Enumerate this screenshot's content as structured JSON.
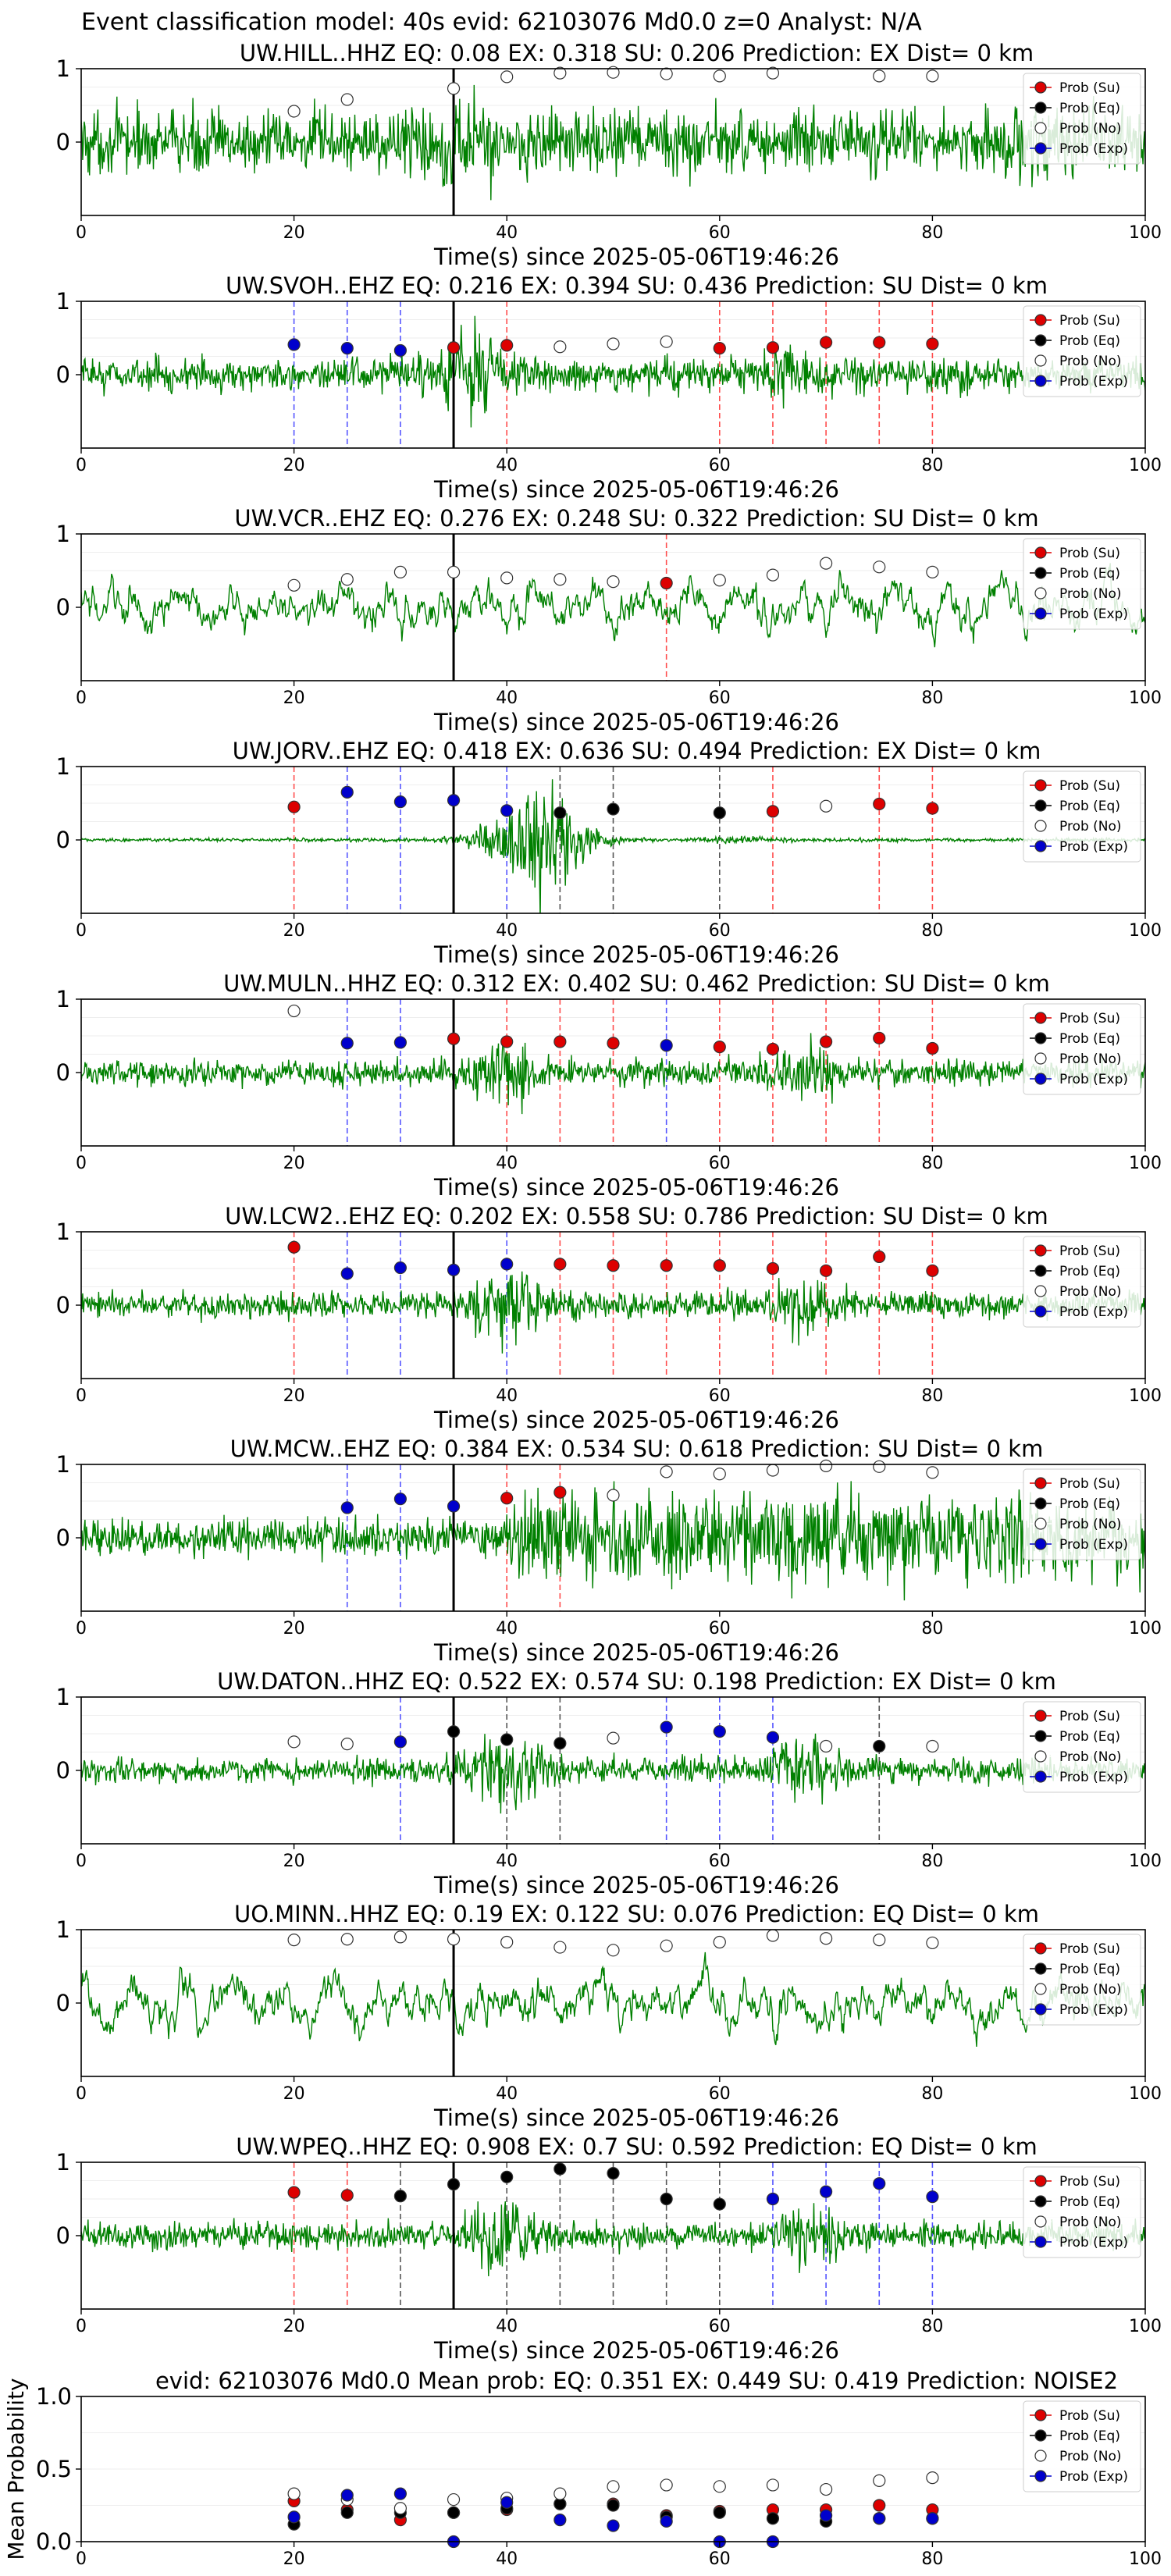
{
  "suptitle": "Event classification model: 40s evid: 62103076 Md0.0 z=0 Analyst: N/A",
  "colors": {
    "waveform": "#008000",
    "su": "#dd0000",
    "eq": "#000000",
    "no": "#ffffff",
    "exp": "#0000cc",
    "su_line": "#ff4d4d",
    "eq_line": "#555555",
    "exp_line": "#5555ff",
    "pick_line": "#000000"
  },
  "legend": [
    "Prob (Su)",
    "Prob (Eq)",
    "Prob (No)",
    "Prob (Exp)"
  ],
  "chart_data": [
    {
      "type": "line",
      "title": "UW.HILL..HHZ   EQ: 0.08  EX: 0.318  SU: 0.206   Prediction: EX    Dist= 0 km",
      "xlabel": "Time(s) since 2025-05-06T19:46:26",
      "ylabel": "",
      "xlim": [
        0,
        100
      ],
      "ylim": [
        -1,
        1
      ],
      "xticks": [
        "0",
        "20",
        "40",
        "60",
        "80",
        "100"
      ],
      "yticks": [
        "0",
        "1"
      ],
      "pick_time": 35,
      "waveform_style": "noise",
      "legend_placement": "top-right",
      "points": [
        {
          "t": 20,
          "cls": "no",
          "p": 0.42
        },
        {
          "t": 25,
          "cls": "no",
          "p": 0.58
        },
        {
          "t": 35,
          "cls": "no",
          "p": 0.73
        },
        {
          "t": 40,
          "cls": "no",
          "p": 0.89
        },
        {
          "t": 45,
          "cls": "no",
          "p": 0.94
        },
        {
          "t": 50,
          "cls": "no",
          "p": 0.95
        },
        {
          "t": 55,
          "cls": "no",
          "p": 0.93
        },
        {
          "t": 60,
          "cls": "no",
          "p": 0.9
        },
        {
          "t": 65,
          "cls": "no",
          "p": 0.94
        },
        {
          "t": 75,
          "cls": "no",
          "p": 0.9
        },
        {
          "t": 80,
          "cls": "no",
          "p": 0.9
        }
      ]
    },
    {
      "type": "line",
      "title": "UW.SVOH..EHZ   EQ: 0.216  EX: 0.394  SU: 0.436   Prediction: SU    Dist= 0 km",
      "xlabel": "Time(s) since 2025-05-06T19:46:26",
      "ylabel": "",
      "xlim": [
        0,
        100
      ],
      "ylim": [
        -1,
        1
      ],
      "xticks": [
        "0",
        "20",
        "40",
        "60",
        "80",
        "100"
      ],
      "yticks": [
        "0",
        "1"
      ],
      "pick_time": 35,
      "waveform_style": "burst",
      "legend_placement": "top-right",
      "points": [
        {
          "t": 20,
          "cls": "exp",
          "p": 0.41
        },
        {
          "t": 25,
          "cls": "exp",
          "p": 0.36
        },
        {
          "t": 30,
          "cls": "exp",
          "p": 0.33
        },
        {
          "t": 35,
          "cls": "su",
          "p": 0.37
        },
        {
          "t": 40,
          "cls": "su",
          "p": 0.4
        },
        {
          "t": 45,
          "cls": "no",
          "p": 0.38
        },
        {
          "t": 50,
          "cls": "no",
          "p": 0.42
        },
        {
          "t": 55,
          "cls": "no",
          "p": 0.45
        },
        {
          "t": 60,
          "cls": "su",
          "p": 0.36
        },
        {
          "t": 65,
          "cls": "su",
          "p": 0.37
        },
        {
          "t": 70,
          "cls": "su",
          "p": 0.44
        },
        {
          "t": 75,
          "cls": "su",
          "p": 0.44
        },
        {
          "t": 80,
          "cls": "su",
          "p": 0.42
        }
      ]
    },
    {
      "type": "line",
      "title": "UW.VCR..EHZ   EQ: 0.276  EX: 0.248  SU: 0.322   Prediction: SU    Dist= 0 km",
      "xlabel": "Time(s) since 2025-05-06T19:46:26",
      "ylabel": "",
      "xlim": [
        0,
        100
      ],
      "ylim": [
        -1,
        1
      ],
      "xticks": [
        "0",
        "20",
        "40",
        "60",
        "80",
        "100"
      ],
      "yticks": [
        "0",
        "1"
      ],
      "pick_time": 35,
      "waveform_style": "lowfreq",
      "legend_placement": "top-right",
      "points": [
        {
          "t": 20,
          "cls": "no",
          "p": 0.3
        },
        {
          "t": 25,
          "cls": "no",
          "p": 0.38
        },
        {
          "t": 30,
          "cls": "no",
          "p": 0.48
        },
        {
          "t": 35,
          "cls": "no",
          "p": 0.48
        },
        {
          "t": 40,
          "cls": "no",
          "p": 0.4
        },
        {
          "t": 45,
          "cls": "no",
          "p": 0.38
        },
        {
          "t": 50,
          "cls": "no",
          "p": 0.35
        },
        {
          "t": 55,
          "cls": "su",
          "p": 0.33
        },
        {
          "t": 60,
          "cls": "no",
          "p": 0.37
        },
        {
          "t": 65,
          "cls": "no",
          "p": 0.44
        },
        {
          "t": 70,
          "cls": "no",
          "p": 0.6
        },
        {
          "t": 75,
          "cls": "no",
          "p": 0.55
        },
        {
          "t": 80,
          "cls": "no",
          "p": 0.48
        }
      ]
    },
    {
      "type": "line",
      "title": "UW.JORV..EHZ   EQ: 0.418  EX: 0.636  SU: 0.494   Prediction: EX    Dist= 0 km",
      "xlabel": "Time(s) since 2025-05-06T19:46:26",
      "ylabel": "",
      "xlim": [
        0,
        100
      ],
      "ylim": [
        -1,
        1
      ],
      "xticks": [
        "0",
        "20",
        "40",
        "60",
        "80",
        "100"
      ],
      "yticks": [
        "0",
        "1"
      ],
      "pick_time": 35,
      "waveform_style": "quiet",
      "legend_placement": "top-right",
      "points": [
        {
          "t": 20,
          "cls": "su",
          "p": 0.45
        },
        {
          "t": 25,
          "cls": "exp",
          "p": 0.65
        },
        {
          "t": 30,
          "cls": "exp",
          "p": 0.52
        },
        {
          "t": 35,
          "cls": "exp",
          "p": 0.54
        },
        {
          "t": 40,
          "cls": "exp",
          "p": 0.4
        },
        {
          "t": 45,
          "cls": "eq",
          "p": 0.37
        },
        {
          "t": 50,
          "cls": "eq",
          "p": 0.42
        },
        {
          "t": 60,
          "cls": "eq",
          "p": 0.37
        },
        {
          "t": 65,
          "cls": "su",
          "p": 0.39
        },
        {
          "t": 70,
          "cls": "no",
          "p": 0.46
        },
        {
          "t": 75,
          "cls": "su",
          "p": 0.49
        },
        {
          "t": 80,
          "cls": "su",
          "p": 0.43
        }
      ]
    },
    {
      "type": "line",
      "title": "UW.MULN..HHZ   EQ: 0.312  EX: 0.402  SU: 0.462   Prediction: SU    Dist= 0 km",
      "xlabel": "Time(s) since 2025-05-06T19:46:26",
      "ylabel": "",
      "xlim": [
        0,
        100
      ],
      "ylim": [
        -1,
        1
      ],
      "xticks": [
        "0",
        "20",
        "40",
        "60",
        "80",
        "100"
      ],
      "yticks": [
        "0",
        "1"
      ],
      "pick_time": 35,
      "waveform_style": "medium",
      "legend_placement": "top-right",
      "points": [
        {
          "t": 20,
          "cls": "no",
          "p": 0.84
        },
        {
          "t": 25,
          "cls": "exp",
          "p": 0.4
        },
        {
          "t": 30,
          "cls": "exp",
          "p": 0.41
        },
        {
          "t": 35,
          "cls": "su",
          "p": 0.46
        },
        {
          "t": 40,
          "cls": "su",
          "p": 0.42
        },
        {
          "t": 45,
          "cls": "su",
          "p": 0.42
        },
        {
          "t": 50,
          "cls": "su",
          "p": 0.4
        },
        {
          "t": 55,
          "cls": "exp",
          "p": 0.37
        },
        {
          "t": 60,
          "cls": "su",
          "p": 0.35
        },
        {
          "t": 65,
          "cls": "su",
          "p": 0.32
        },
        {
          "t": 70,
          "cls": "su",
          "p": 0.42
        },
        {
          "t": 75,
          "cls": "su",
          "p": 0.47
        },
        {
          "t": 80,
          "cls": "su",
          "p": 0.33
        }
      ]
    },
    {
      "type": "line",
      "title": "UW.LCW2..EHZ   EQ: 0.202  EX: 0.558  SU: 0.786   Prediction: SU    Dist= 0 km",
      "xlabel": "Time(s) since 2025-05-06T19:46:26",
      "ylabel": "",
      "xlim": [
        0,
        100
      ],
      "ylim": [
        -1,
        1
      ],
      "xticks": [
        "0",
        "20",
        "40",
        "60",
        "80",
        "100"
      ],
      "yticks": [
        "0",
        "1"
      ],
      "pick_time": 35,
      "waveform_style": "medium",
      "legend_placement": "top-right",
      "points": [
        {
          "t": 20,
          "cls": "su",
          "p": 0.79
        },
        {
          "t": 25,
          "cls": "exp",
          "p": 0.43
        },
        {
          "t": 30,
          "cls": "exp",
          "p": 0.51
        },
        {
          "t": 35,
          "cls": "exp",
          "p": 0.48
        },
        {
          "t": 40,
          "cls": "exp",
          "p": 0.56
        },
        {
          "t": 45,
          "cls": "su",
          "p": 0.56
        },
        {
          "t": 50,
          "cls": "su",
          "p": 0.54
        },
        {
          "t": 55,
          "cls": "su",
          "p": 0.54
        },
        {
          "t": 60,
          "cls": "su",
          "p": 0.54
        },
        {
          "t": 65,
          "cls": "su",
          "p": 0.5
        },
        {
          "t": 70,
          "cls": "su",
          "p": 0.47
        },
        {
          "t": 75,
          "cls": "su",
          "p": 0.66
        },
        {
          "t": 80,
          "cls": "su",
          "p": 0.47
        }
      ]
    },
    {
      "type": "line",
      "title": "UW.MCW..EHZ   EQ: 0.384  EX: 0.534  SU: 0.618   Prediction: SU    Dist= 0 km",
      "xlabel": "Time(s) since 2025-05-06T19:46:26",
      "ylabel": "",
      "xlim": [
        0,
        100
      ],
      "ylim": [
        -1,
        1
      ],
      "xticks": [
        "0",
        "20",
        "40",
        "60",
        "80",
        "100"
      ],
      "yticks": [
        "0",
        "1"
      ],
      "pick_time": 35,
      "waveform_style": "rising",
      "legend_placement": "top-right",
      "points": [
        {
          "t": 25,
          "cls": "exp",
          "p": 0.41
        },
        {
          "t": 30,
          "cls": "exp",
          "p": 0.53
        },
        {
          "t": 35,
          "cls": "exp",
          "p": 0.43
        },
        {
          "t": 40,
          "cls": "su",
          "p": 0.54
        },
        {
          "t": 45,
          "cls": "su",
          "p": 0.62
        },
        {
          "t": 50,
          "cls": "no",
          "p": 0.58
        },
        {
          "t": 55,
          "cls": "no",
          "p": 0.9
        },
        {
          "t": 60,
          "cls": "no",
          "p": 0.87
        },
        {
          "t": 65,
          "cls": "no",
          "p": 0.92
        },
        {
          "t": 70,
          "cls": "no",
          "p": 0.98
        },
        {
          "t": 75,
          "cls": "no",
          "p": 0.97
        },
        {
          "t": 80,
          "cls": "no",
          "p": 0.89
        }
      ]
    },
    {
      "type": "line",
      "title": "UW.DATON..HHZ   EQ: 0.522  EX: 0.574  SU: 0.198   Prediction: EX    Dist= 0 km",
      "xlabel": "Time(s) since 2025-05-06T19:46:26",
      "ylabel": "",
      "xlim": [
        0,
        100
      ],
      "ylim": [
        -1,
        1
      ],
      "xticks": [
        "0",
        "20",
        "40",
        "60",
        "80",
        "100"
      ],
      "yticks": [
        "0",
        "1"
      ],
      "pick_time": 35,
      "waveform_style": "medium",
      "legend_placement": "top-right",
      "points": [
        {
          "t": 20,
          "cls": "no",
          "p": 0.39
        },
        {
          "t": 25,
          "cls": "no",
          "p": 0.36
        },
        {
          "t": 30,
          "cls": "exp",
          "p": 0.39
        },
        {
          "t": 35,
          "cls": "eq",
          "p": 0.53
        },
        {
          "t": 40,
          "cls": "eq",
          "p": 0.42
        },
        {
          "t": 45,
          "cls": "eq",
          "p": 0.37
        },
        {
          "t": 50,
          "cls": "no",
          "p": 0.44
        },
        {
          "t": 55,
          "cls": "exp",
          "p": 0.59
        },
        {
          "t": 60,
          "cls": "exp",
          "p": 0.53
        },
        {
          "t": 65,
          "cls": "exp",
          "p": 0.45
        },
        {
          "t": 70,
          "cls": "no",
          "p": 0.33
        },
        {
          "t": 75,
          "cls": "eq",
          "p": 0.33
        },
        {
          "t": 80,
          "cls": "no",
          "p": 0.33
        }
      ]
    },
    {
      "type": "line",
      "title": "UO.MINN..HHZ   EQ: 0.19  EX: 0.122  SU: 0.076   Prediction: EQ    Dist= 0 km",
      "xlabel": "Time(s) since 2025-05-06T19:46:26",
      "ylabel": "",
      "xlim": [
        0,
        100
      ],
      "ylim": [
        -1,
        1
      ],
      "xticks": [
        "0",
        "20",
        "40",
        "60",
        "80",
        "100"
      ],
      "yticks": [
        "0",
        "1"
      ],
      "pick_time": 35,
      "waveform_style": "lowfreq",
      "legend_placement": "top-right",
      "points": [
        {
          "t": 20,
          "cls": "no",
          "p": 0.86
        },
        {
          "t": 25,
          "cls": "no",
          "p": 0.87
        },
        {
          "t": 30,
          "cls": "no",
          "p": 0.9
        },
        {
          "t": 35,
          "cls": "no",
          "p": 0.87
        },
        {
          "t": 40,
          "cls": "no",
          "p": 0.83
        },
        {
          "t": 45,
          "cls": "no",
          "p": 0.76
        },
        {
          "t": 50,
          "cls": "no",
          "p": 0.72
        },
        {
          "t": 55,
          "cls": "no",
          "p": 0.78
        },
        {
          "t": 60,
          "cls": "no",
          "p": 0.83
        },
        {
          "t": 65,
          "cls": "no",
          "p": 0.92
        },
        {
          "t": 70,
          "cls": "no",
          "p": 0.88
        },
        {
          "t": 75,
          "cls": "no",
          "p": 0.86
        },
        {
          "t": 80,
          "cls": "no",
          "p": 0.82
        }
      ]
    },
    {
      "type": "line",
      "title": "UW.WPEQ..HHZ   EQ: 0.908  EX: 0.7  SU: 0.592   Prediction: EQ    Dist= 0 km",
      "xlabel": "Time(s) since 2025-05-06T19:46:26",
      "ylabel": "",
      "xlim": [
        0,
        100
      ],
      "ylim": [
        -1,
        1
      ],
      "xticks": [
        "0",
        "20",
        "40",
        "60",
        "80",
        "100"
      ],
      "yticks": [
        "0",
        "1"
      ],
      "pick_time": 35,
      "waveform_style": "medium",
      "legend_placement": "top-right",
      "points": [
        {
          "t": 20,
          "cls": "su",
          "p": 0.59
        },
        {
          "t": 25,
          "cls": "su",
          "p": 0.55
        },
        {
          "t": 30,
          "cls": "eq",
          "p": 0.54
        },
        {
          "t": 35,
          "cls": "eq",
          "p": 0.7
        },
        {
          "t": 40,
          "cls": "eq",
          "p": 0.8
        },
        {
          "t": 45,
          "cls": "eq",
          "p": 0.91
        },
        {
          "t": 50,
          "cls": "eq",
          "p": 0.85
        },
        {
          "t": 55,
          "cls": "eq",
          "p": 0.5
        },
        {
          "t": 60,
          "cls": "eq",
          "p": 0.43
        },
        {
          "t": 65,
          "cls": "exp",
          "p": 0.5
        },
        {
          "t": 70,
          "cls": "exp",
          "p": 0.6
        },
        {
          "t": 75,
          "cls": "exp",
          "p": 0.71
        },
        {
          "t": 80,
          "cls": "exp",
          "p": 0.53
        }
      ]
    },
    {
      "type": "scatter",
      "title": "evid: 62103076  Md0.0   Mean prob:   EQ: 0.351  EX: 0.449  SU: 0.419   Prediction: NOISE2",
      "xlabel": "",
      "ylabel": "Mean Probability",
      "xlim": [
        0,
        100
      ],
      "ylim": [
        0,
        1
      ],
      "xticks": [
        "0",
        "20",
        "40",
        "60",
        "80",
        "100"
      ],
      "yticks": [
        "0.0",
        "0.5",
        "1.0"
      ],
      "legend_placement": "top-right",
      "series": [
        {
          "name": "Prob (Su)",
          "cls": "su",
          "x": [
            20,
            25,
            30,
            35,
            40,
            45,
            50,
            55,
            60,
            65,
            70,
            75,
            80
          ],
          "y": [
            0.28,
            0.22,
            0.15,
            0.2,
            0.22,
            0.26,
            0.26,
            0.18,
            0.21,
            0.22,
            0.22,
            0.25,
            0.22
          ]
        },
        {
          "name": "Prob (Eq)",
          "cls": "eq",
          "x": [
            20,
            25,
            30,
            35,
            40,
            45,
            50,
            55,
            60,
            65,
            70,
            75,
            80
          ],
          "y": [
            0.12,
            0.2,
            0.2,
            0.2,
            0.23,
            0.26,
            0.25,
            0.17,
            0.2,
            0.16,
            0.14,
            0.16,
            0.16
          ]
        },
        {
          "name": "Prob (No)",
          "cls": "no",
          "x": [
            20,
            25,
            30,
            35,
            40,
            45,
            50,
            55,
            60,
            65,
            70,
            75,
            80
          ],
          "y": [
            0.33,
            0.29,
            0.23,
            0.29,
            0.3,
            0.33,
            0.38,
            0.39,
            0.38,
            0.39,
            0.36,
            0.42,
            0.44
          ]
        },
        {
          "name": "Prob (Exp)",
          "cls": "exp",
          "x": [
            20,
            25,
            30,
            35,
            40,
            45,
            50,
            55,
            60,
            65,
            70,
            75,
            80
          ],
          "y": [
            0.17,
            0.32,
            0.33,
            0.0,
            0.27,
            0.15,
            0.11,
            0.14,
            0.0,
            0.0,
            0.18,
            0.16,
            0.16
          ]
        }
      ]
    }
  ]
}
